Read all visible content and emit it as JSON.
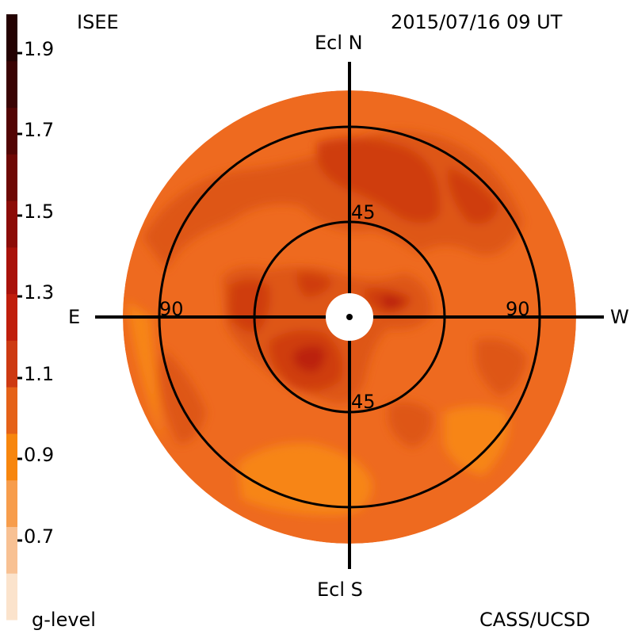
{
  "header": {
    "observatory": "ISEE",
    "timestamp": "2015/07/16 09 UT"
  },
  "footer": {
    "credit": "CASS/UCSD",
    "scale_label": "g-level"
  },
  "colorbar": {
    "tick_labels": [
      "1.9",
      "1.7",
      "1.5",
      "1.3",
      "1.1",
      "0.9",
      "0.7"
    ],
    "bands": [
      "#fbe3cc",
      "#f8c193",
      "#f79d4c",
      "#f7860e",
      "#e56218",
      "#cd3a12",
      "#c01e0c",
      "#a9120a",
      "#8c0c07",
      "#6e0805",
      "#530504",
      "#3a0303",
      "#240202"
    ]
  },
  "map": {
    "axis_labels": {
      "north": "Ecl N",
      "south": "Ecl S",
      "east": "E",
      "west": "W"
    },
    "ring_labels": {
      "inner_top": "45",
      "inner_bottom": "45",
      "outer_left": "90",
      "outer_right": "90"
    },
    "colors": {
      "base": "#ee6a1f",
      "dark": "#de5619",
      "darker": "#cf3c10",
      "darkest": "#bb2409",
      "light": "#f78512",
      "grid": "#000000"
    }
  }
}
